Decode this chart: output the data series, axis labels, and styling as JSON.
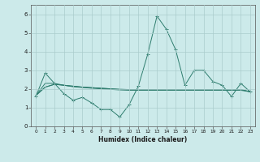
{
  "x": [
    0,
    1,
    2,
    3,
    4,
    5,
    6,
    7,
    8,
    9,
    10,
    11,
    12,
    13,
    14,
    15,
    16,
    17,
    18,
    19,
    20,
    21,
    22,
    23
  ],
  "line1": [
    1.6,
    2.85,
    2.3,
    1.75,
    1.4,
    1.55,
    1.25,
    0.9,
    0.9,
    0.5,
    1.15,
    2.15,
    3.85,
    5.9,
    5.2,
    4.1,
    2.2,
    3.0,
    3.0,
    2.4,
    2.2,
    1.6,
    2.3,
    1.85
  ],
  "line2": [
    1.65,
    2.1,
    2.25,
    2.2,
    2.15,
    2.1,
    2.07,
    2.04,
    2.01,
    1.98,
    1.97,
    1.97,
    1.97,
    1.97,
    1.97,
    1.97,
    1.97,
    1.97,
    1.97,
    1.97,
    1.97,
    1.95,
    1.97,
    1.85
  ],
  "line3": [
    1.65,
    2.1,
    2.25,
    2.2,
    2.15,
    2.1,
    2.07,
    2.04,
    2.01,
    1.98,
    1.97,
    1.97,
    1.97,
    1.97,
    1.97,
    1.97,
    1.97,
    1.97,
    1.97,
    1.97,
    1.97,
    1.95,
    1.97,
    1.85
  ],
  "line4": [
    1.65,
    2.3,
    2.3,
    2.2,
    2.12,
    2.08,
    2.04,
    2.01,
    1.98,
    1.95,
    1.93,
    1.93,
    1.93,
    1.93,
    1.93,
    1.93,
    1.93,
    1.93,
    1.93,
    1.93,
    1.93,
    1.93,
    1.93,
    1.85
  ],
  "line_color": "#2e7d6e",
  "bg_color": "#cceaea",
  "grid_color": "#aacccc",
  "xlabel": "Humidex (Indice chaleur)",
  "ylim": [
    0,
    6.5
  ],
  "xlim": [
    -0.5,
    23.5
  ],
  "yticks": [
    0,
    1,
    2,
    3,
    4,
    5,
    6
  ],
  "xticks": [
    0,
    1,
    2,
    3,
    4,
    5,
    6,
    7,
    8,
    9,
    10,
    11,
    12,
    13,
    14,
    15,
    16,
    17,
    18,
    19,
    20,
    21,
    22,
    23
  ]
}
